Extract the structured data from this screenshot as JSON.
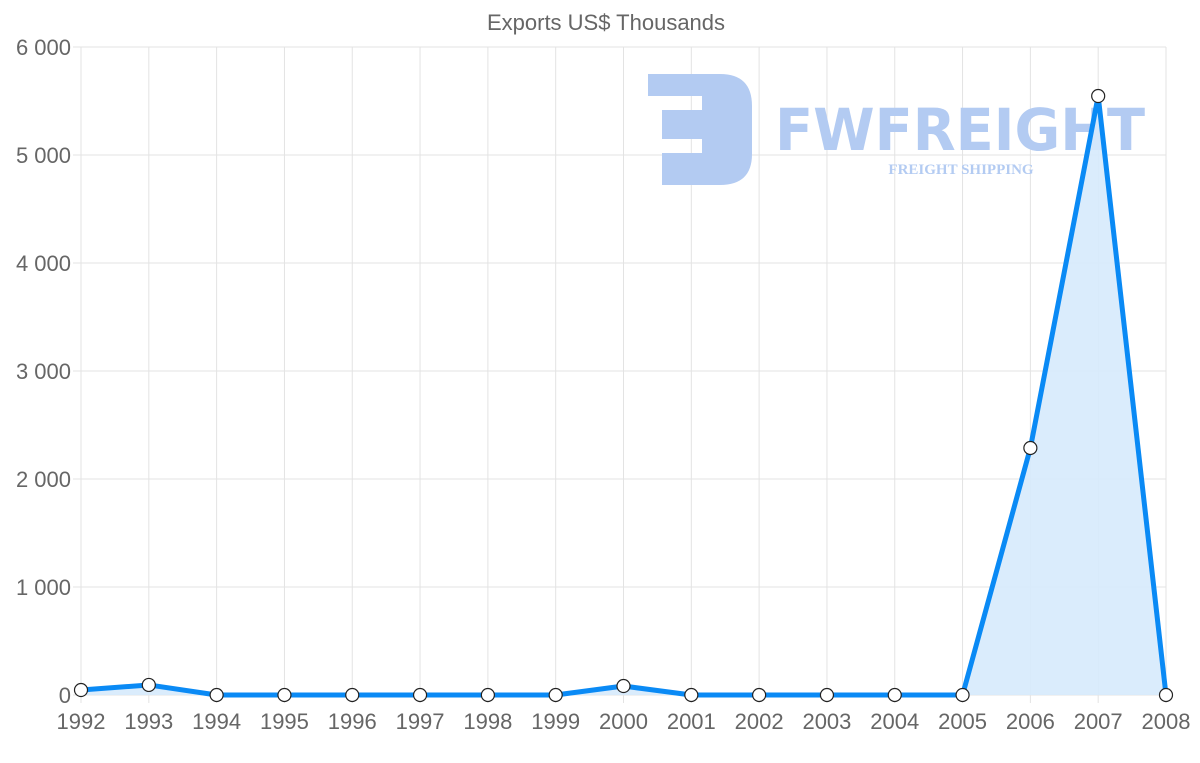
{
  "chart_data": {
    "type": "line",
    "title": "Exports US$ Thousands",
    "xlabel": "",
    "ylabel": "",
    "categories": [
      "1992",
      "1993",
      "1994",
      "1995",
      "1996",
      "1997",
      "1998",
      "1999",
      "2000",
      "2001",
      "2002",
      "2003",
      "2004",
      "2005",
      "2006",
      "2007",
      "2008"
    ],
    "series": [
      {
        "name": "Exports US$ Thousands",
        "values": [
          46,
          93,
          0,
          0,
          0,
          0,
          0,
          0,
          83,
          0,
          0,
          0,
          0,
          0,
          2287,
          5546,
          0
        ]
      }
    ],
    "ylim": [
      0,
      6000
    ],
    "yticks": [
      0,
      1000,
      2000,
      3000,
      4000,
      5000,
      6000
    ],
    "ytick_labels": [
      "0",
      "1 000",
      "2 000",
      "3 000",
      "4 000",
      "5 000",
      "6 000"
    ],
    "grid": true,
    "line_color": "#0a8af5",
    "fill_color": "#d6eafc"
  },
  "watermark": {
    "brand": "FWFREIGHT",
    "tagline": "FREIGHT SHIPPING",
    "color": "#b3cbf2"
  }
}
